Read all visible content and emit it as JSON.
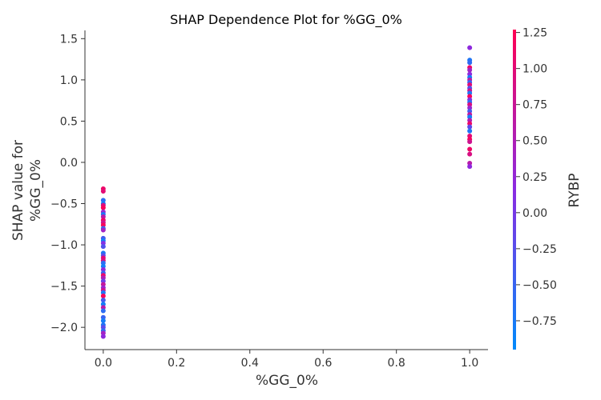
{
  "chart_data": {
    "type": "scatter",
    "title": "SHAP Dependence Plot for %GG_0%",
    "xlabel": "%GG_0%",
    "ylabel_lines": [
      "SHAP value for",
      "%GG_0%"
    ],
    "xlim": [
      -0.05,
      1.05
    ],
    "ylim": [
      -2.27,
      1.6
    ],
    "x_ticks": [
      0.0,
      0.2,
      0.4,
      0.6,
      0.8,
      1.0
    ],
    "x_tick_labels": [
      "0.0",
      "0.2",
      "0.4",
      "0.6",
      "0.8",
      "1.0"
    ],
    "y_ticks": [
      1.5,
      1.0,
      0.5,
      0.0,
      -0.5,
      -1.0,
      -1.5,
      -2.0
    ],
    "y_tick_labels": [
      "1.5",
      "1.0",
      "0.5",
      "0.0",
      "−0.5",
      "−1.0",
      "−1.5",
      "−2.0"
    ],
    "colorbar": {
      "label": "RYBP",
      "range": [
        -0.95,
        1.27
      ],
      "ticks": [
        1.25,
        1.0,
        0.75,
        0.5,
        0.25,
        0.0,
        -0.25,
        -0.5,
        -0.75
      ],
      "tick_labels": [
        "1.25",
        "1.00",
        "0.75",
        "0.50",
        "0.25",
        "0.00",
        "−0.25",
        "−0.50",
        "−0.75"
      ],
      "low_color": "#008afb",
      "mid_color": "#8a2be2",
      "high_color": "#ff0052"
    },
    "grid": false,
    "legend": "none",
    "points": [
      {
        "x": 0,
        "y": -0.32,
        "c": 1.1
      },
      {
        "x": 0,
        "y": -0.35,
        "c": 1.0
      },
      {
        "x": 0,
        "y": -0.46,
        "c": -0.6
      },
      {
        "x": 0,
        "y": -0.5,
        "c": -0.8
      },
      {
        "x": 0,
        "y": -0.52,
        "c": 0.9
      },
      {
        "x": 0,
        "y": -0.55,
        "c": 1.2
      },
      {
        "x": 0,
        "y": -0.6,
        "c": 0.3
      },
      {
        "x": 0,
        "y": -0.63,
        "c": -0.7
      },
      {
        "x": 0,
        "y": -0.66,
        "c": 0.6
      },
      {
        "x": 0,
        "y": -0.7,
        "c": 1.1
      },
      {
        "x": 0,
        "y": -0.73,
        "c": 0.8
      },
      {
        "x": 0,
        "y": -0.76,
        "c": 1.2
      },
      {
        "x": 0,
        "y": -0.8,
        "c": -0.5
      },
      {
        "x": 0,
        "y": -0.82,
        "c": 0.4
      },
      {
        "x": 0,
        "y": -0.92,
        "c": -0.4
      },
      {
        "x": 0,
        "y": -0.95,
        "c": -0.8
      },
      {
        "x": 0,
        "y": -0.98,
        "c": 0.1
      },
      {
        "x": 0,
        "y": -1.02,
        "c": -0.3
      },
      {
        "x": 0,
        "y": -1.1,
        "c": -0.7
      },
      {
        "x": 0,
        "y": -1.13,
        "c": -0.2
      },
      {
        "x": 0,
        "y": -1.16,
        "c": 1.0
      },
      {
        "x": 0,
        "y": -1.19,
        "c": 0.9
      },
      {
        "x": 0,
        "y": -1.22,
        "c": -0.6
      },
      {
        "x": 0,
        "y": -1.26,
        "c": -0.8
      },
      {
        "x": 0,
        "y": -1.3,
        "c": 0.2
      },
      {
        "x": 0,
        "y": -1.34,
        "c": -0.5
      },
      {
        "x": 0,
        "y": -1.37,
        "c": 1.1
      },
      {
        "x": 0,
        "y": -1.4,
        "c": 0.5
      },
      {
        "x": 0,
        "y": -1.44,
        "c": -0.1
      },
      {
        "x": 0,
        "y": -1.48,
        "c": 0.7
      },
      {
        "x": 0,
        "y": -1.52,
        "c": 0.3
      },
      {
        "x": 0,
        "y": -1.55,
        "c": 0.8
      },
      {
        "x": 0,
        "y": -1.58,
        "c": -0.7
      },
      {
        "x": 0,
        "y": -1.62,
        "c": 1.2
      },
      {
        "x": 0,
        "y": -1.67,
        "c": -0.4
      },
      {
        "x": 0,
        "y": -1.72,
        "c": -0.8
      },
      {
        "x": 0,
        "y": -1.76,
        "c": 0.6
      },
      {
        "x": 0,
        "y": -1.8,
        "c": -0.6
      },
      {
        "x": 0,
        "y": -1.88,
        "c": -0.5
      },
      {
        "x": 0,
        "y": -1.92,
        "c": -0.8
      },
      {
        "x": 0,
        "y": -1.97,
        "c": -0.7
      },
      {
        "x": 0,
        "y": -2.0,
        "c": -0.2
      },
      {
        "x": 0,
        "y": -2.04,
        "c": -0.6
      },
      {
        "x": 0,
        "y": -2.07,
        "c": 0.4
      },
      {
        "x": 0,
        "y": -2.11,
        "c": 0.2
      },
      {
        "x": 1,
        "y": 1.39,
        "c": 0.2
      },
      {
        "x": 1,
        "y": 1.24,
        "c": -0.7
      },
      {
        "x": 1,
        "y": 1.21,
        "c": -0.6
      },
      {
        "x": 1,
        "y": 1.15,
        "c": 1.1
      },
      {
        "x": 1,
        "y": 1.12,
        "c": 0.4
      },
      {
        "x": 1,
        "y": 1.07,
        "c": 0.2
      },
      {
        "x": 1,
        "y": 1.03,
        "c": -0.8
      },
      {
        "x": 1,
        "y": 1.0,
        "c": 0.6
      },
      {
        "x": 1,
        "y": 0.97,
        "c": -0.5
      },
      {
        "x": 1,
        "y": 0.94,
        "c": 1.0
      },
      {
        "x": 1,
        "y": 0.9,
        "c": -0.3
      },
      {
        "x": 1,
        "y": 0.87,
        "c": 0.8
      },
      {
        "x": 1,
        "y": 0.84,
        "c": -0.7
      },
      {
        "x": 1,
        "y": 0.8,
        "c": 1.2
      },
      {
        "x": 1,
        "y": 0.76,
        "c": 0.1
      },
      {
        "x": 1,
        "y": 0.73,
        "c": -0.6
      },
      {
        "x": 1,
        "y": 0.7,
        "c": 0.9
      },
      {
        "x": 1,
        "y": 0.66,
        "c": 0.3
      },
      {
        "x": 1,
        "y": 0.62,
        "c": -0.4
      },
      {
        "x": 1,
        "y": 0.58,
        "c": 0.7
      },
      {
        "x": 1,
        "y": 0.55,
        "c": -0.8
      },
      {
        "x": 1,
        "y": 0.51,
        "c": 0.5
      },
      {
        "x": 1,
        "y": 0.47,
        "c": 1.1
      },
      {
        "x": 1,
        "y": 0.43,
        "c": -0.2
      },
      {
        "x": 1,
        "y": 0.38,
        "c": -0.7
      },
      {
        "x": 1,
        "y": 0.32,
        "c": 1.0
      },
      {
        "x": 1,
        "y": 0.28,
        "c": 1.2
      },
      {
        "x": 1,
        "y": 0.25,
        "c": 0.8
      },
      {
        "x": 1,
        "y": 0.16,
        "c": 1.1
      },
      {
        "x": 1,
        "y": 0.1,
        "c": 0.9
      },
      {
        "x": 1,
        "y": -0.01,
        "c": 0.6
      },
      {
        "x": 1,
        "y": -0.05,
        "c": 0.2
      }
    ]
  }
}
